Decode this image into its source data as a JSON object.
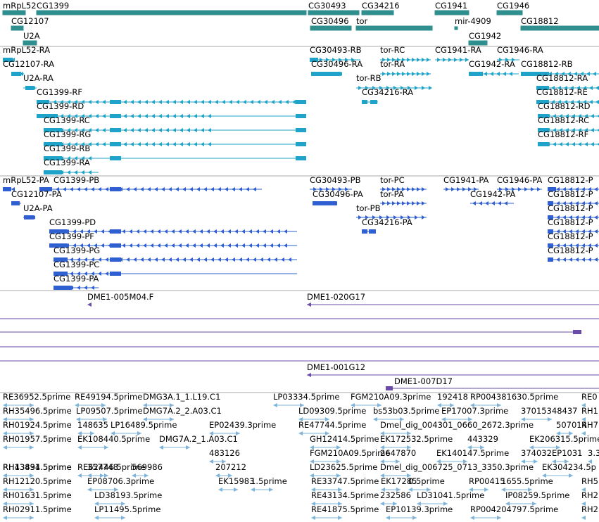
{
  "colors": {
    "gene": "#2f8f8f",
    "transcript": "#1fa3c8",
    "protein": "#2f5fd0",
    "clone": "#6a4ca8",
    "est": "#7fb3d9",
    "separator": "#aaaaaa"
  },
  "tracks": {
    "genes": {
      "labels": [
        "mRpL52",
        "CG1399",
        "CG12107",
        "U2A",
        "CG30493",
        "CG30496",
        "tor",
        "CG34216",
        "CG1941",
        "mir-4909",
        "CG1942",
        "CG1946",
        "CG18812"
      ]
    },
    "transcripts": {
      "labels": [
        "mRpL52-RA",
        "CG12107-RA",
        "U2A-RA",
        "CG1399-RF",
        "CG1399-RD",
        "CG1399-RC",
        "CG1399-RG",
        "CG1399-RB",
        "CG1399-RA",
        "CG30493-RB",
        "CG30496-RA",
        "tor-RC",
        "tor-RA",
        "tor-RB",
        "CG34216-RA",
        "CG1941-RA",
        "CG1942-RA",
        "CG1946-RA",
        "CG18812-RB",
        "CG18812-RA",
        "CG18812-RE",
        "CG18812-RD",
        "CG18812-RC",
        "CG18812-RF"
      ]
    },
    "proteins": {
      "labels": [
        "mRpL52-PA",
        "CG1399-PB",
        "CG12107-PA",
        "U2A-PA",
        "CG1399-PD",
        "CG1399-PF",
        "CG1399-PG",
        "CG1399-PC",
        "CG1399-PA",
        "CG30493-PB",
        "CG30496-PA",
        "tor-PC",
        "tor-PA",
        "tor-PB",
        "CG34216-PA",
        "CG1941-PA",
        "CG1942-PA",
        "CG1946-PA",
        "CG18812-P",
        "CG18812-P",
        "CG18812-P",
        "CG18812-P",
        "CG18812-P",
        "CG18812-P"
      ]
    },
    "clones": {
      "labels": [
        "DME1-005M04.F",
        "DME1-020G17",
        "DME1-001G12",
        "DME1-007D17"
      ]
    },
    "ests": {
      "labels": [
        "RE36952.5prime",
        "RE49194.5prime",
        "DMG3A.1_1.L19.C1",
        "LP03334.5prime",
        "FGM210A09.3prime",
        "192418",
        "RP004381630.5prime",
        "RE0",
        "RH35496.5prime",
        "LP09507.5prime",
        "DMG7A.2_2.A03.C1",
        "LD09309.5prime",
        "bs53b03.5prime",
        "EP17007.3prime",
        "37015348437",
        "RH1",
        "RH01924.5prime",
        "148635",
        "LP16489.5prime",
        "EP02439.3prime",
        "RE47744.5prime",
        "Dmel_dig_004301_0660_2672.3prime",
        "507014",
        "RH7",
        "RH01957.5prime",
        "EK108440.5prime",
        "DMG7A.2_1.A03.C1",
        "GH12414.5prime",
        "EK172532.5prime",
        "443329",
        "EK206315.5prime",
        "483126",
        "FGM210A09.5prime",
        "2647870",
        "EK140147.5prime",
        "374032",
        "EP1031",
        "3.3",
        "RH13891.5prime",
        "RE62446.5prime",
        "LD23625.5prime",
        "Dmel_dig_006725_0713_3350.3prime",
        "RH43434.5prime",
        "357748",
        "569986",
        "207212",
        "EK304234.5p",
        "RH12120.5prime",
        "EP08706.3prime",
        "EK15983",
        "1.5prime",
        "RE33747.5prime",
        "EK17285",
        "0.5prime",
        "RP00415",
        "1655.5prime",
        "RH5",
        "RH01631.5prime",
        "LD38193.5prime",
        "RE43134.5prime",
        "232586",
        "LD31041.5prime",
        "IP08259.5prime",
        "RH2",
        "RH02911.5prime",
        "LP11495.5prime",
        "RE41875.5prime",
        "EP10139.3prime",
        "RP004204797.5prime",
        "RH2"
      ]
    }
  }
}
